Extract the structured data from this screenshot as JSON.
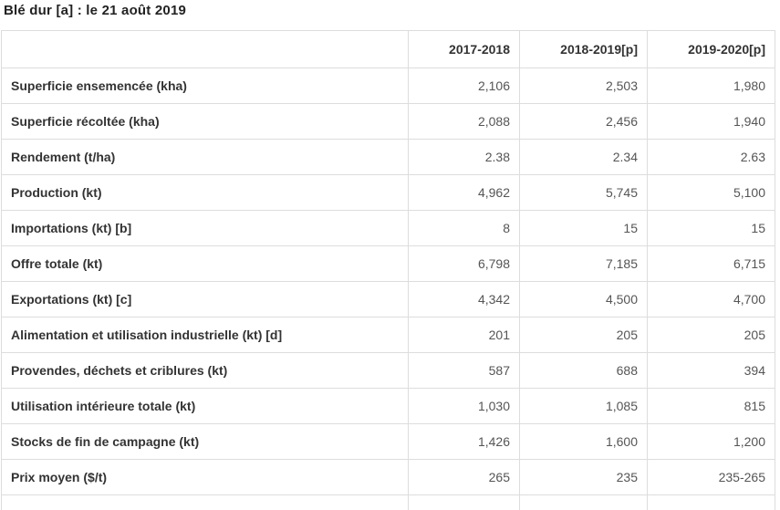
{
  "title": "Blé dur [a] : le 21 août 2019",
  "table": {
    "columns": [
      "",
      "2017-2018",
      "2018-2019[p]",
      "2019-2020[p]"
    ],
    "rows": [
      {
        "label": "Superficie ensemencée (kha)",
        "values": [
          "2,106",
          "2,503",
          "1,980"
        ]
      },
      {
        "label": "Superficie récoltée (kha)",
        "values": [
          "2,088",
          "2,456",
          "1,940"
        ]
      },
      {
        "label": "Rendement (t/ha)",
        "values": [
          "2.38",
          "2.34",
          "2.63"
        ]
      },
      {
        "label": "Production (kt)",
        "values": [
          "4,962",
          "5,745",
          "5,100"
        ]
      },
      {
        "label": "Importations (kt) [b]",
        "values": [
          "8",
          "15",
          "15"
        ]
      },
      {
        "label": "Offre totale (kt)",
        "values": [
          "6,798",
          "7,185",
          "6,715"
        ]
      },
      {
        "label": "Exportations (kt) [c]",
        "values": [
          "4,342",
          "4,500",
          "4,700"
        ]
      },
      {
        "label": "Alimentation et utilisation industrielle (kt) [d]",
        "values": [
          "201",
          "205",
          "205"
        ]
      },
      {
        "label": "Provendes, déchets et criblures (kt)",
        "values": [
          "587",
          "688",
          "394"
        ]
      },
      {
        "label": "Utilisation intérieure totale (kt)",
        "values": [
          "1,030",
          "1,085",
          "815"
        ]
      },
      {
        "label": "Stocks de fin de campagne (kt)",
        "values": [
          "1,426",
          "1,600",
          "1,200"
        ]
      },
      {
        "label": "Prix moyen ($/t)",
        "values": [
          "265",
          "235",
          "235-265"
        ]
      }
    ]
  },
  "colors": {
    "border": "#dddddd",
    "title_text": "#222222",
    "label_text": "#333333",
    "value_text": "#555555",
    "background": "#ffffff"
  }
}
